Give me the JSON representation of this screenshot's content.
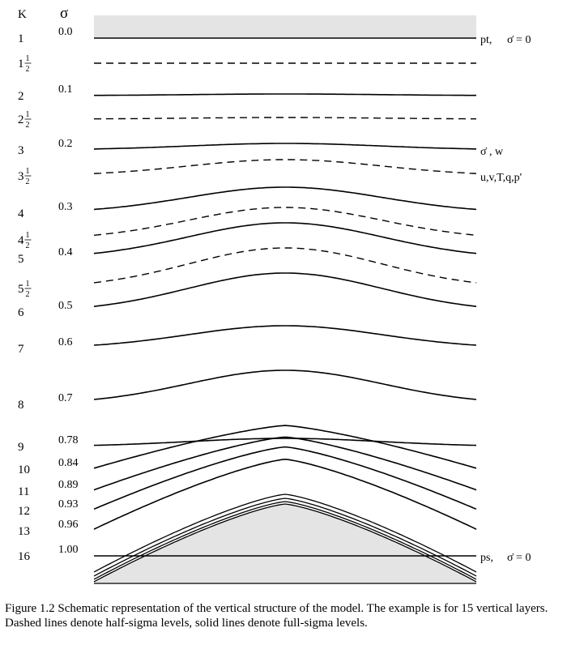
{
  "header": {
    "k_label": "K",
    "sigma_label": "σ"
  },
  "levels": [
    {
      "k": "1",
      "sigma": "0.0",
      "half": false,
      "amp": 0,
      "right": "pt,",
      "right2": "σ̇ = 0"
    },
    {
      "k": "1",
      "frac": "1/2",
      "half": true,
      "amp": 0
    },
    {
      "k": "2",
      "sigma": "0.1",
      "half": false,
      "amp": 2
    },
    {
      "k": "2",
      "frac": "1/2",
      "half": true,
      "amp": 2
    },
    {
      "k": "3",
      "sigma": "0.2",
      "half": false,
      "amp": 8,
      "right": "σ̇ , w"
    },
    {
      "k": "3",
      "frac": "1/2",
      "half": true,
      "amp": 20,
      "right": "u,v,T,q,p'"
    },
    {
      "k": "4",
      "sigma": "0.3",
      "half": false,
      "amp": 32
    },
    {
      "k": "4",
      "frac": "1/2",
      "half": true,
      "amp": 40
    },
    {
      "k": "5",
      "sigma": "0.4",
      "half": false,
      "amp": 44
    },
    {
      "k": "5",
      "frac": "1/2",
      "half": true,
      "amp": 50
    },
    {
      "k": "6",
      "sigma": "0.5",
      "half": false,
      "amp": 48
    },
    {
      "k": "7",
      "sigma": "0.6",
      "half": false,
      "amp": 28
    },
    {
      "k": "8",
      "sigma": "0.7",
      "half": false,
      "amp": 42
    },
    {
      "k": "9",
      "sigma": "0.78",
      "half": false,
      "amp": 10
    },
    {
      "k": "10",
      "sigma": "0.84",
      "half": false,
      "amp": 0
    },
    {
      "k": "11",
      "sigma": "0.89",
      "half": false,
      "amp": 0
    },
    {
      "k": "12",
      "sigma": "0.93",
      "half": false,
      "amp": 0
    },
    {
      "k": "13",
      "sigma": "0.96",
      "half": false,
      "amp": 0
    },
    {
      "k": "16",
      "sigma": "1.00",
      "half": false,
      "amp": 0,
      "right": "ps,",
      "right2": "σ̇ = 0"
    }
  ],
  "caption": "Figure 1.2 Schematic representation of the vertical structure of the model. The example is for 15 vertical layers. Dashed lines denote half-sigma levels, solid lines denote full-sigma levels."
}
